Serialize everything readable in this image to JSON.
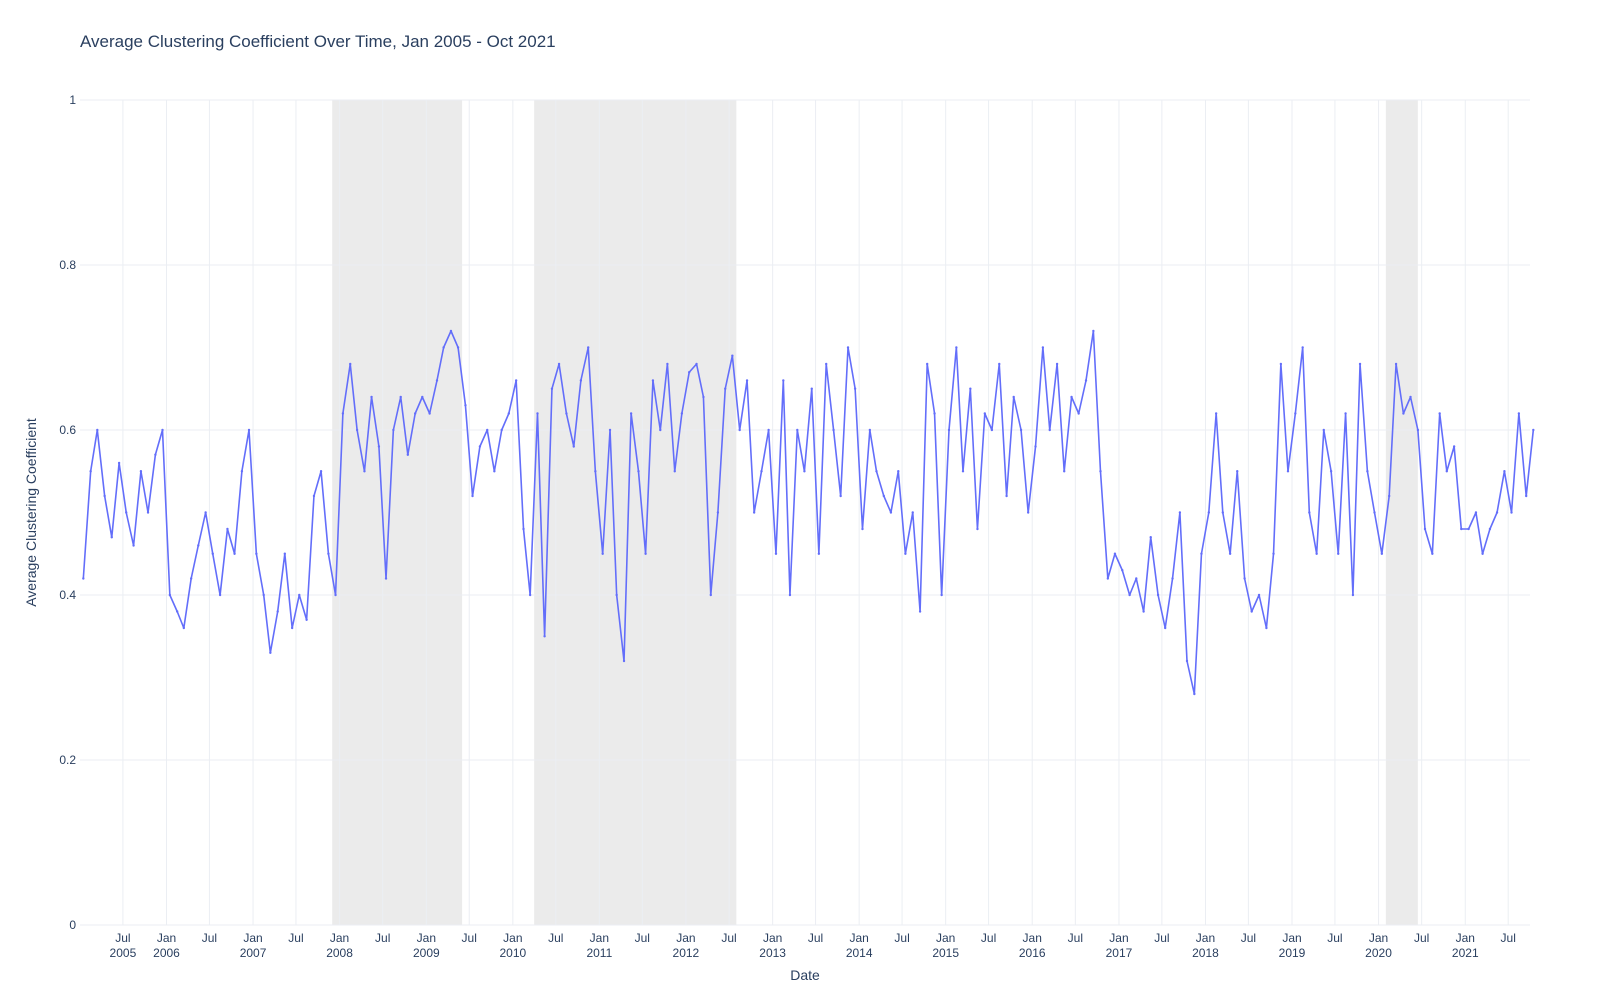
{
  "chart_data": {
    "type": "line",
    "title": "Average Clustering Coefficient Over Time, Jan 2005 - Oct 2021",
    "xlabel": "Date",
    "ylabel": "Average Clustering Coefficient",
    "ylim": [
      0,
      1
    ],
    "xlim": [
      "2005-01-01",
      "2021-10-01"
    ],
    "yticks": [
      0,
      0.2,
      0.4,
      0.6,
      0.8,
      1
    ],
    "ytick_labels": [
      "0",
      "0.2",
      "0.4",
      "0.6",
      "0.8",
      "1"
    ],
    "xticks": [
      {
        "date": "2005-07-01",
        "label": "Jul",
        "year": "2005"
      },
      {
        "date": "2006-01-01",
        "label": "Jan",
        "year": "2006"
      },
      {
        "date": "2006-07-01",
        "label": "Jul",
        "year": ""
      },
      {
        "date": "2007-01-01",
        "label": "Jan",
        "year": "2007"
      },
      {
        "date": "2007-07-01",
        "label": "Jul",
        "year": ""
      },
      {
        "date": "2008-01-01",
        "label": "Jan",
        "year": "2008"
      },
      {
        "date": "2008-07-01",
        "label": "Jul",
        "year": ""
      },
      {
        "date": "2009-01-01",
        "label": "Jan",
        "year": "2009"
      },
      {
        "date": "2009-07-01",
        "label": "Jul",
        "year": ""
      },
      {
        "date": "2010-01-01",
        "label": "Jan",
        "year": "2010"
      },
      {
        "date": "2010-07-01",
        "label": "Jul",
        "year": ""
      },
      {
        "date": "2011-01-01",
        "label": "Jan",
        "year": "2011"
      },
      {
        "date": "2011-07-01",
        "label": "Jul",
        "year": ""
      },
      {
        "date": "2012-01-01",
        "label": "Jan",
        "year": "2012"
      },
      {
        "date": "2012-07-01",
        "label": "Jul",
        "year": ""
      },
      {
        "date": "2013-01-01",
        "label": "Jan",
        "year": "2013"
      },
      {
        "date": "2013-07-01",
        "label": "Jul",
        "year": ""
      },
      {
        "date": "2014-01-01",
        "label": "Jan",
        "year": "2014"
      },
      {
        "date": "2014-07-01",
        "label": "Jul",
        "year": ""
      },
      {
        "date": "2015-01-01",
        "label": "Jan",
        "year": "2015"
      },
      {
        "date": "2015-07-01",
        "label": "Jul",
        "year": ""
      },
      {
        "date": "2016-01-01",
        "label": "Jan",
        "year": "2016"
      },
      {
        "date": "2016-07-01",
        "label": "Jul",
        "year": ""
      },
      {
        "date": "2017-01-01",
        "label": "Jan",
        "year": "2017"
      },
      {
        "date": "2017-07-01",
        "label": "Jul",
        "year": ""
      },
      {
        "date": "2018-01-01",
        "label": "Jan",
        "year": "2018"
      },
      {
        "date": "2018-07-01",
        "label": "Jul",
        "year": ""
      },
      {
        "date": "2019-01-01",
        "label": "Jan",
        "year": "2019"
      },
      {
        "date": "2019-07-01",
        "label": "Jul",
        "year": ""
      },
      {
        "date": "2020-01-01",
        "label": "Jan",
        "year": "2020"
      },
      {
        "date": "2020-07-01",
        "label": "Jul",
        "year": ""
      },
      {
        "date": "2021-01-01",
        "label": "Jan",
        "year": "2021"
      },
      {
        "date": "2021-07-01",
        "label": "Jul",
        "year": ""
      }
    ],
    "shaded_periods": [
      {
        "start": "2007-12-01",
        "end": "2009-06-01"
      },
      {
        "start": "2010-04-01",
        "end": "2012-08-01"
      },
      {
        "start": "2020-02-01",
        "end": "2020-06-15"
      }
    ],
    "grid": true,
    "colors": {
      "line": "#636efa",
      "shade": "#ebebeb",
      "grid": "#ebeef3"
    },
    "series": [
      {
        "x": [
          "2005-01",
          "2005-02",
          "2005-03",
          "2005-04",
          "2005-05",
          "2005-06",
          "2005-07",
          "2005-08",
          "2005-09",
          "2005-10",
          "2005-11",
          "2005-12",
          "2006-01",
          "2006-02",
          "2006-03",
          "2006-04",
          "2006-05",
          "2006-06",
          "2006-07",
          "2006-08",
          "2006-09",
          "2006-10",
          "2006-11",
          "2006-12",
          "2007-01",
          "2007-02",
          "2007-03",
          "2007-04",
          "2007-05",
          "2007-06",
          "2007-07",
          "2007-08",
          "2007-09",
          "2007-10",
          "2007-11",
          "2007-12",
          "2008-01",
          "2008-02",
          "2008-03",
          "2008-04",
          "2008-05",
          "2008-06",
          "2008-07",
          "2008-08",
          "2008-09",
          "2008-10",
          "2008-11",
          "2008-12",
          "2009-01",
          "2009-02",
          "2009-03",
          "2009-04",
          "2009-05",
          "2009-06",
          "2009-07",
          "2009-08",
          "2009-09",
          "2009-10",
          "2009-11",
          "2009-12",
          "2010-01",
          "2010-02",
          "2010-03",
          "2010-04",
          "2010-05",
          "2010-06",
          "2010-07",
          "2010-08",
          "2010-09",
          "2010-10",
          "2010-11",
          "2010-12",
          "2011-01",
          "2011-02",
          "2011-03",
          "2011-04",
          "2011-05",
          "2011-06",
          "2011-07",
          "2011-08",
          "2011-09",
          "2011-10",
          "2011-11",
          "2011-12",
          "2012-01",
          "2012-02",
          "2012-03",
          "2012-04",
          "2012-05",
          "2012-06",
          "2012-07",
          "2012-08",
          "2012-09",
          "2012-10",
          "2012-11",
          "2012-12",
          "2013-01",
          "2013-02",
          "2013-03",
          "2013-04",
          "2013-05",
          "2013-06",
          "2013-07",
          "2013-08",
          "2013-09",
          "2013-10",
          "2013-11",
          "2013-12",
          "2014-01",
          "2014-02",
          "2014-03",
          "2014-04",
          "2014-05",
          "2014-06",
          "2014-07",
          "2014-08",
          "2014-09",
          "2014-10",
          "2014-11",
          "2014-12",
          "2015-01",
          "2015-02",
          "2015-03",
          "2015-04",
          "2015-05",
          "2015-06",
          "2015-07",
          "2015-08",
          "2015-09",
          "2015-10",
          "2015-11",
          "2015-12",
          "2016-01",
          "2016-02",
          "2016-03",
          "2016-04",
          "2016-05",
          "2016-06",
          "2016-07",
          "2016-08",
          "2016-09",
          "2016-10",
          "2016-11",
          "2016-12",
          "2017-01",
          "2017-02",
          "2017-03",
          "2017-04",
          "2017-05",
          "2017-06",
          "2017-07",
          "2017-08",
          "2017-09",
          "2017-10",
          "2017-11",
          "2017-12",
          "2018-01",
          "2018-02",
          "2018-03",
          "2018-04",
          "2018-05",
          "2018-06",
          "2018-07",
          "2018-08",
          "2018-09",
          "2018-10",
          "2018-11",
          "2018-12",
          "2019-01",
          "2019-02",
          "2019-03",
          "2019-04",
          "2019-05",
          "2019-06",
          "2019-07",
          "2019-08",
          "2019-09",
          "2019-10",
          "2019-11",
          "2019-12",
          "2020-01",
          "2020-02",
          "2020-03",
          "2020-04",
          "2020-05",
          "2020-06",
          "2020-07",
          "2020-08",
          "2020-09",
          "2020-10",
          "2020-11",
          "2020-12",
          "2021-01",
          "2021-02",
          "2021-03",
          "2021-04",
          "2021-05",
          "2021-06",
          "2021-07",
          "2021-08",
          "2021-09",
          "2021-10"
        ],
        "values": [
          0.42,
          0.55,
          0.6,
          0.52,
          0.47,
          0.56,
          0.5,
          0.46,
          0.55,
          0.5,
          0.57,
          0.6,
          0.4,
          0.38,
          0.36,
          0.42,
          0.46,
          0.5,
          0.45,
          0.4,
          0.48,
          0.45,
          0.55,
          0.6,
          0.45,
          0.4,
          0.33,
          0.38,
          0.45,
          0.36,
          0.4,
          0.37,
          0.52,
          0.55,
          0.45,
          0.4,
          0.62,
          0.68,
          0.6,
          0.55,
          0.64,
          0.58,
          0.42,
          0.6,
          0.64,
          0.57,
          0.62,
          0.64,
          0.62,
          0.66,
          0.7,
          0.72,
          0.7,
          0.63,
          0.52,
          0.58,
          0.6,
          0.55,
          0.6,
          0.62,
          0.66,
          0.48,
          0.4,
          0.62,
          0.35,
          0.65,
          0.68,
          0.62,
          0.58,
          0.66,
          0.7,
          0.55,
          0.45,
          0.6,
          0.4,
          0.32,
          0.62,
          0.55,
          0.45,
          0.66,
          0.6,
          0.68,
          0.55,
          0.62,
          0.67,
          0.68,
          0.64,
          0.4,
          0.5,
          0.65,
          0.69,
          0.6,
          0.66,
          0.5,
          0.55,
          0.6,
          0.45,
          0.66,
          0.4,
          0.6,
          0.55,
          0.65,
          0.45,
          0.68,
          0.6,
          0.52,
          0.7,
          0.65,
          0.48,
          0.6,
          0.55,
          0.52,
          0.5,
          0.55,
          0.45,
          0.5,
          0.38,
          0.68,
          0.62,
          0.4,
          0.6,
          0.7,
          0.55,
          0.65,
          0.48,
          0.62,
          0.6,
          0.68,
          0.52,
          0.64,
          0.6,
          0.5,
          0.58,
          0.7,
          0.6,
          0.68,
          0.55,
          0.64,
          0.62,
          0.66,
          0.72,
          0.55,
          0.42,
          0.45,
          0.43,
          0.4,
          0.42,
          0.38,
          0.47,
          0.4,
          0.36,
          0.42,
          0.5,
          0.32,
          0.28,
          0.45,
          0.5,
          0.62,
          0.5,
          0.45,
          0.55,
          0.42,
          0.38,
          0.4,
          0.36,
          0.45,
          0.68,
          0.55,
          0.62,
          0.7,
          0.5,
          0.45,
          0.6,
          0.55,
          0.45,
          0.62,
          0.4,
          0.68,
          0.55,
          0.5,
          0.45,
          0.52,
          0.68,
          0.62,
          0.64,
          0.6,
          0.48,
          0.45,
          0.62,
          0.55,
          0.58,
          0.48,
          0.48,
          0.5,
          0.45,
          0.48,
          0.5,
          0.55,
          0.5,
          0.62,
          0.52,
          0.6
        ]
      }
    ]
  }
}
